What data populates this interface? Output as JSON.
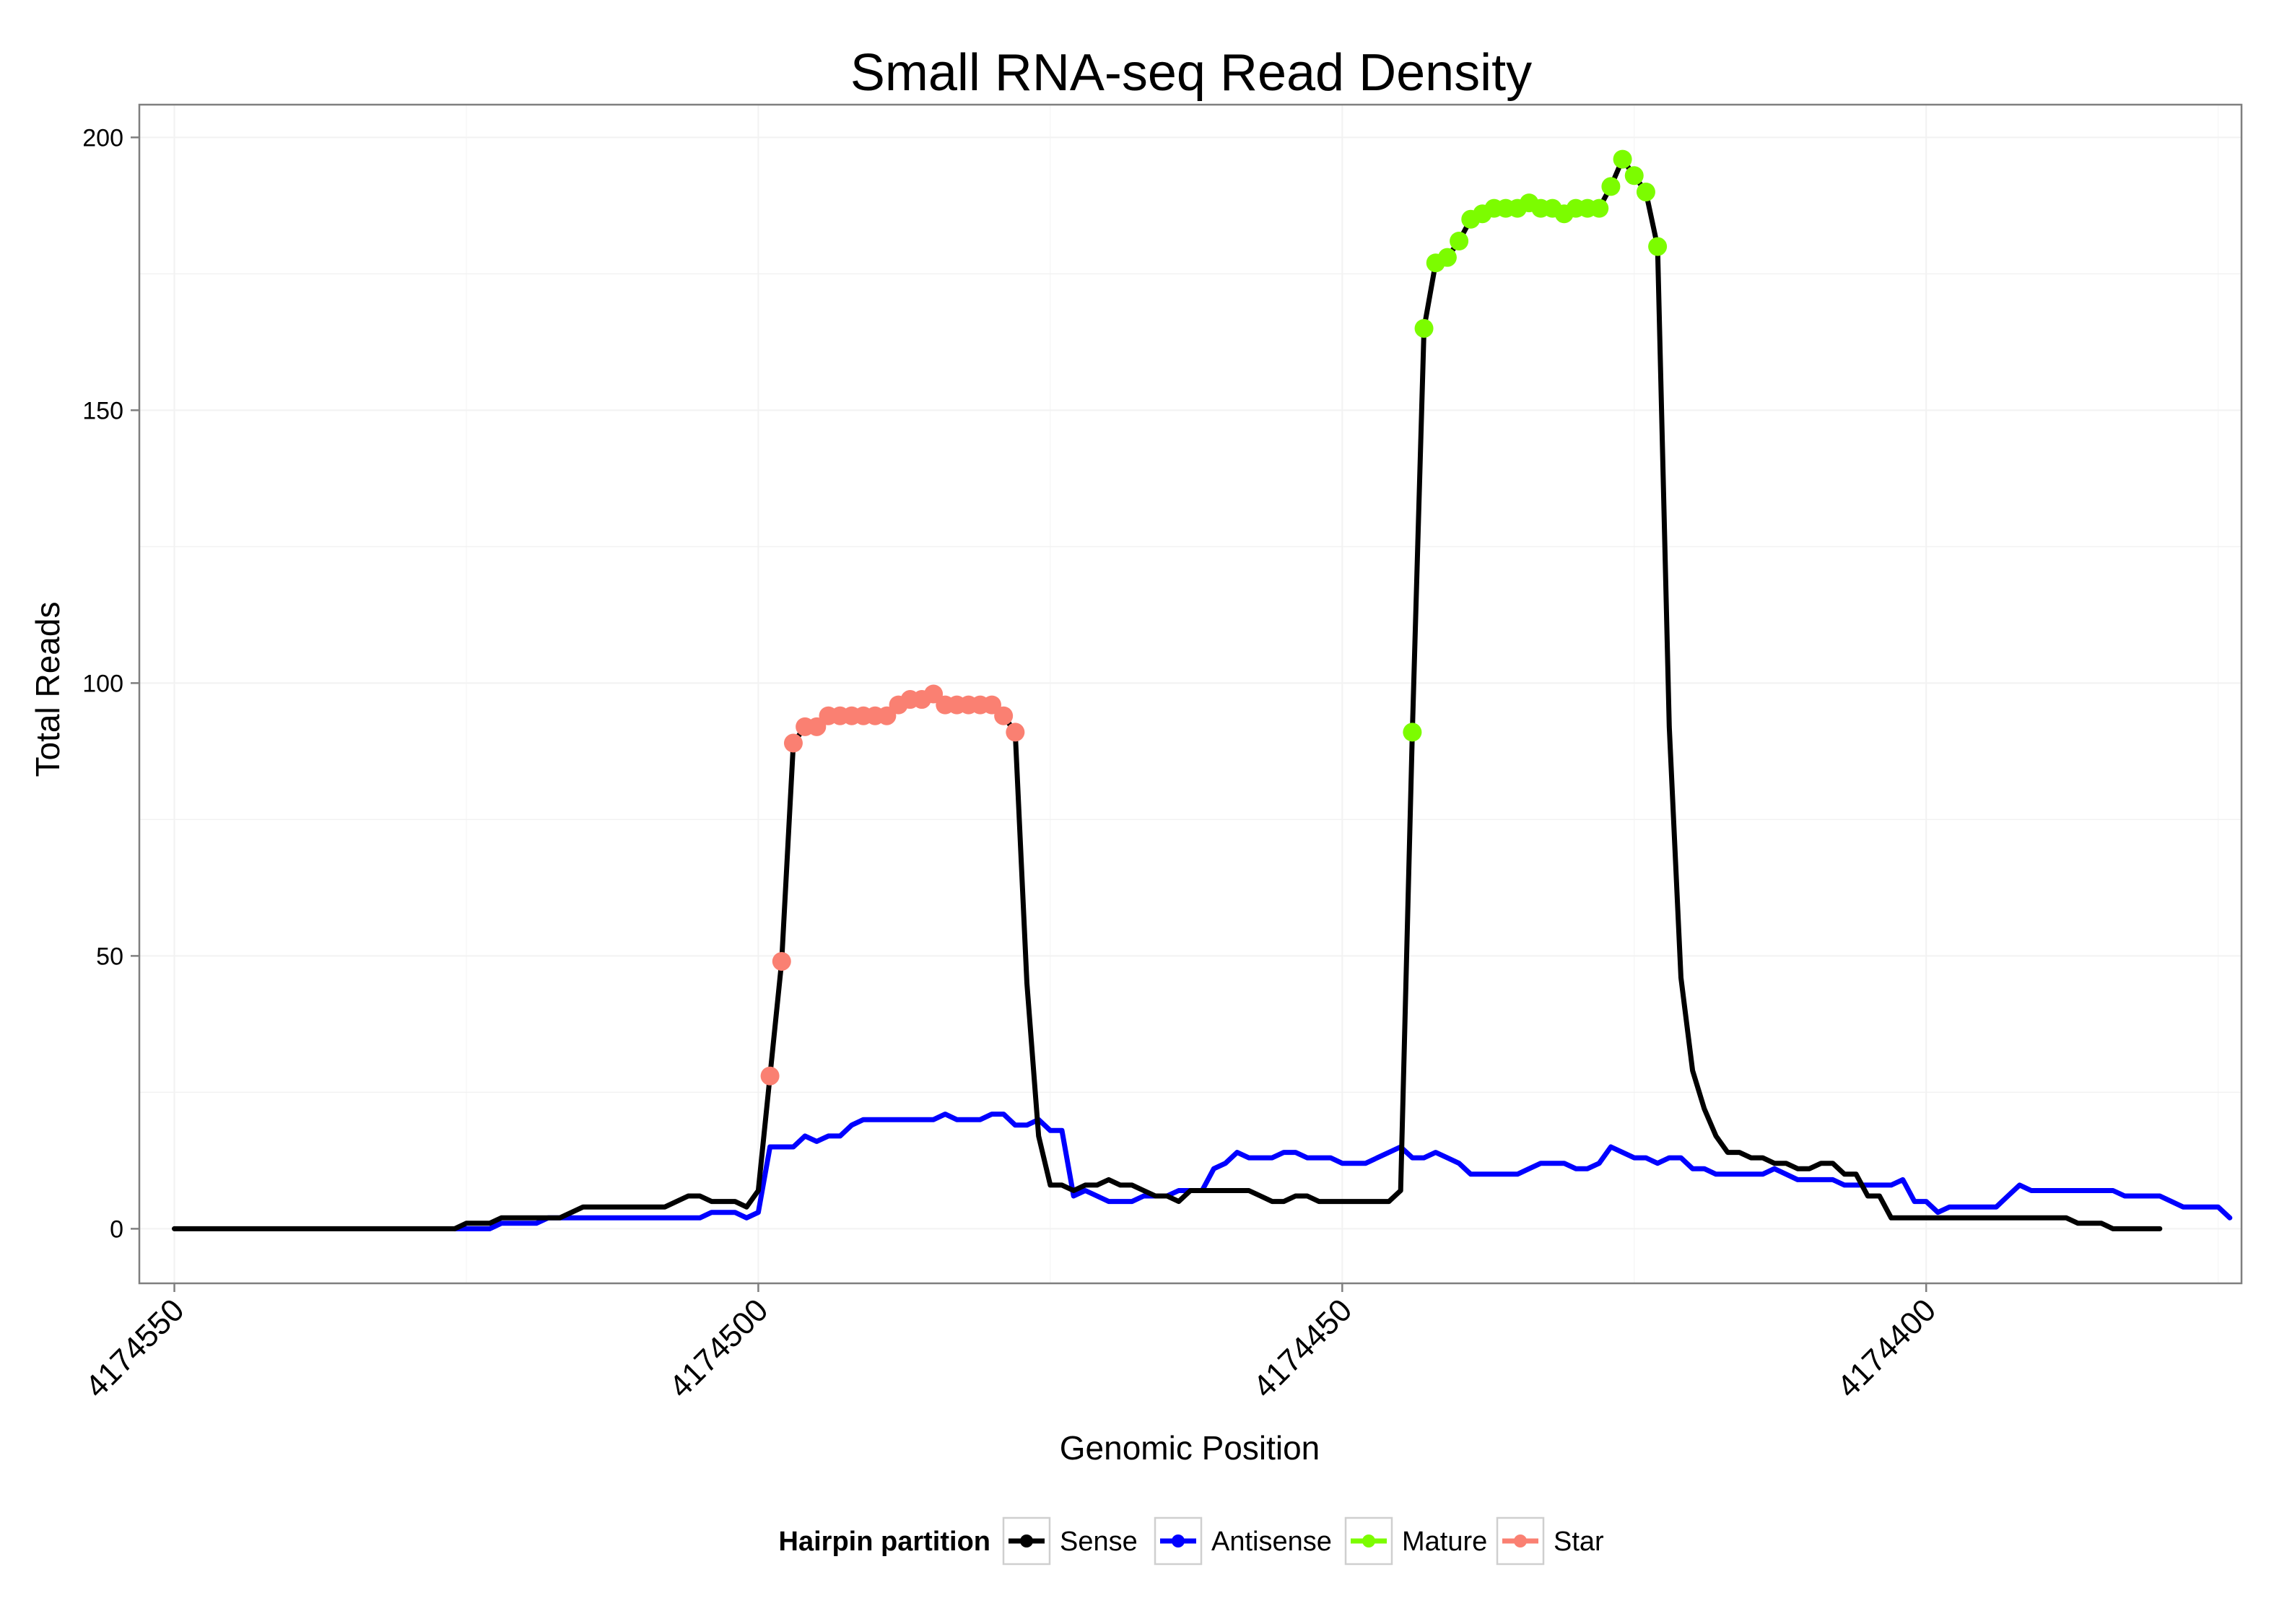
{
  "chart_data": {
    "type": "line",
    "title": "Small RNA-seq Read Density",
    "xlabel": "Genomic Position",
    "ylabel": "Total Reads",
    "x_reversed": true,
    "xlim": [
      4174553,
      4174373
    ],
    "ylim": [
      -10,
      206
    ],
    "x_ticks": [
      4174550,
      4174500,
      4174450,
      4174400
    ],
    "x_tick_labels": [
      "4174550",
      "4174500",
      "4174450",
      "4174400"
    ],
    "y_ticks": [
      0,
      50,
      100,
      150,
      200
    ],
    "y_tick_labels": [
      "0",
      "50",
      "100",
      "150",
      "200"
    ],
    "grid": true,
    "legend": {
      "title": "Hairpin partition",
      "position": "bottom",
      "entries": [
        {
          "label": "Sense",
          "color": "#000000"
        },
        {
          "label": "Antisense",
          "color": "#0000ff"
        },
        {
          "label": "Mature",
          "color": "#7cfc00"
        },
        {
          "label": "Star",
          "color": "#fa8072"
        }
      ]
    },
    "colors": {
      "sense": "#000000",
      "antisense": "#0000ff",
      "mature": "#7cfc00",
      "star": "#fa8072"
    },
    "series": [
      {
        "name": "Sense",
        "color": "#000000",
        "points": [
          [
            4174550,
            0
          ],
          [
            4174526,
            0
          ],
          [
            4174525,
            1
          ],
          [
            4174523,
            1
          ],
          [
            4174522,
            2
          ],
          [
            4174517,
            2
          ],
          [
            4174515,
            4
          ],
          [
            4174508,
            4
          ],
          [
            4174506,
            6
          ],
          [
            4174505,
            6
          ],
          [
            4174504,
            5
          ],
          [
            4174502,
            5
          ],
          [
            4174501,
            4
          ],
          [
            4174500,
            7
          ],
          [
            4174499,
            28
          ],
          [
            4174498,
            49
          ],
          [
            4174497,
            89
          ],
          [
            4174496,
            92
          ],
          [
            4174495,
            92
          ],
          [
            4174494,
            94
          ],
          [
            4174493,
            94
          ],
          [
            4174492,
            94
          ],
          [
            4174491,
            94
          ],
          [
            4174490,
            94
          ],
          [
            4174489,
            94
          ],
          [
            4174488,
            96
          ],
          [
            4174487,
            97
          ],
          [
            4174486,
            97
          ],
          [
            4174485,
            98
          ],
          [
            4174484,
            96
          ],
          [
            4174483,
            96
          ],
          [
            4174482,
            96
          ],
          [
            4174481,
            96
          ],
          [
            4174480,
            96
          ],
          [
            4174479,
            94
          ],
          [
            4174478,
            91
          ],
          [
            4174477,
            45
          ],
          [
            4174476,
            17
          ],
          [
            4174475,
            8
          ],
          [
            4174474,
            8
          ],
          [
            4174473,
            7
          ],
          [
            4174472,
            8
          ],
          [
            4174471,
            8
          ],
          [
            4174470,
            9
          ],
          [
            4174469,
            8
          ],
          [
            4174468,
            8
          ],
          [
            4174467,
            7
          ],
          [
            4174466,
            6
          ],
          [
            4174465,
            6
          ],
          [
            4174464,
            5
          ],
          [
            4174463,
            7
          ],
          [
            4174462,
            7
          ],
          [
            4174460,
            7
          ],
          [
            4174458,
            7
          ],
          [
            4174457,
            6
          ],
          [
            4174456,
            5
          ],
          [
            4174455,
            5
          ],
          [
            4174454,
            6
          ],
          [
            4174453,
            6
          ],
          [
            4174452,
            5
          ],
          [
            4174450,
            5
          ],
          [
            4174446,
            5
          ],
          [
            4174445,
            7
          ],
          [
            4174444,
            91
          ],
          [
            4174443,
            165
          ],
          [
            4174442,
            177
          ],
          [
            4174441,
            178
          ],
          [
            4174440,
            181
          ],
          [
            4174439,
            185
          ],
          [
            4174438,
            186
          ],
          [
            4174437,
            187
          ],
          [
            4174436,
            187
          ],
          [
            4174435,
            187
          ],
          [
            4174434,
            188
          ],
          [
            4174433,
            187
          ],
          [
            4174432,
            187
          ],
          [
            4174431,
            186
          ],
          [
            4174430,
            187
          ],
          [
            4174429,
            187
          ],
          [
            4174428,
            187
          ],
          [
            4174427,
            191
          ],
          [
            4174426,
            196
          ],
          [
            4174425,
            193
          ],
          [
            4174424,
            190
          ],
          [
            4174423,
            180
          ],
          [
            4174422,
            92
          ],
          [
            4174421,
            46
          ],
          [
            4174420,
            29
          ],
          [
            4174419,
            22
          ],
          [
            4174418,
            17
          ],
          [
            4174417,
            14
          ],
          [
            4174416,
            14
          ],
          [
            4174415,
            13
          ],
          [
            4174414,
            13
          ],
          [
            4174413,
            12
          ],
          [
            4174412,
            12
          ],
          [
            4174411,
            11
          ],
          [
            4174410,
            11
          ],
          [
            4174409,
            12
          ],
          [
            4174408,
            12
          ],
          [
            4174407,
            10
          ],
          [
            4174406,
            10
          ],
          [
            4174405,
            6
          ],
          [
            4174404,
            6
          ],
          [
            4174403,
            2
          ],
          [
            4174388,
            2
          ],
          [
            4174387,
            1
          ],
          [
            4174385,
            1
          ],
          [
            4174384,
            0
          ],
          [
            4174380,
            0
          ]
        ]
      },
      {
        "name": "Antisense",
        "color": "#0000ff",
        "points": [
          [
            4174526,
            0
          ],
          [
            4174523,
            0
          ],
          [
            4174522,
            1
          ],
          [
            4174519,
            1
          ],
          [
            4174518,
            2
          ],
          [
            4174505,
            2
          ],
          [
            4174504,
            3
          ],
          [
            4174502,
            3
          ],
          [
            4174501,
            2
          ],
          [
            4174500,
            3
          ],
          [
            4174499,
            15
          ],
          [
            4174497,
            15
          ],
          [
            4174496,
            17
          ],
          [
            4174495,
            16
          ],
          [
            4174494,
            17
          ],
          [
            4174493,
            17
          ],
          [
            4174492,
            19
          ],
          [
            4174491,
            20
          ],
          [
            4174487,
            20
          ],
          [
            4174486,
            20
          ],
          [
            4174485,
            20
          ],
          [
            4174484,
            21
          ],
          [
            4174483,
            20
          ],
          [
            4174481,
            20
          ],
          [
            4174480,
            21
          ],
          [
            4174479,
            21
          ],
          [
            4174478,
            19
          ],
          [
            4174477,
            19
          ],
          [
            4174476,
            20
          ],
          [
            4174475,
            18
          ],
          [
            4174474,
            18
          ],
          [
            4174473,
            6
          ],
          [
            4174472,
            7
          ],
          [
            4174471,
            6
          ],
          [
            4174470,
            5
          ],
          [
            4174468,
            5
          ],
          [
            4174467,
            6
          ],
          [
            4174465,
            6
          ],
          [
            4174464,
            7
          ],
          [
            4174462,
            7
          ],
          [
            4174461,
            11
          ],
          [
            4174460,
            12
          ],
          [
            4174459,
            14
          ],
          [
            4174458,
            13
          ],
          [
            4174456,
            13
          ],
          [
            4174455,
            14
          ],
          [
            4174454,
            14
          ],
          [
            4174453,
            13
          ],
          [
            4174451,
            13
          ],
          [
            4174450,
            12
          ],
          [
            4174448,
            12
          ],
          [
            4174447,
            13
          ],
          [
            4174446,
            14
          ],
          [
            4174445,
            15
          ],
          [
            4174444,
            13
          ],
          [
            4174443,
            13
          ],
          [
            4174442,
            14
          ],
          [
            4174441,
            13
          ],
          [
            4174440,
            12
          ],
          [
            4174439,
            10
          ],
          [
            4174435,
            10
          ],
          [
            4174434,
            11
          ],
          [
            4174433,
            12
          ],
          [
            4174431,
            12
          ],
          [
            4174430,
            11
          ],
          [
            4174429,
            11
          ],
          [
            4174428,
            12
          ],
          [
            4174427,
            15
          ],
          [
            4174426,
            14
          ],
          [
            4174425,
            13
          ],
          [
            4174424,
            13
          ],
          [
            4174423,
            12
          ],
          [
            4174422,
            13
          ],
          [
            4174421,
            13
          ],
          [
            4174420,
            11
          ],
          [
            4174419,
            11
          ],
          [
            4174418,
            10
          ],
          [
            4174414,
            10
          ],
          [
            4174413,
            11
          ],
          [
            4174412,
            10
          ],
          [
            4174411,
            9
          ],
          [
            4174408,
            9
          ],
          [
            4174407,
            8
          ],
          [
            4174403,
            8
          ],
          [
            4174402,
            9
          ],
          [
            4174401,
            5
          ],
          [
            4174400,
            5
          ],
          [
            4174399,
            3
          ],
          [
            4174398,
            4
          ],
          [
            4174394,
            4
          ],
          [
            4174393,
            6
          ],
          [
            4174392,
            8
          ],
          [
            4174391,
            7
          ],
          [
            4174386,
            7
          ],
          [
            4174384,
            7
          ],
          [
            4174383,
            6
          ],
          [
            4174380,
            6
          ],
          [
            4174379,
            5
          ],
          [
            4174378,
            4
          ],
          [
            4174375,
            4
          ],
          [
            4174374,
            2
          ]
        ]
      }
    ],
    "marker_series": [
      {
        "name": "Star",
        "color": "#fa8072",
        "points": [
          [
            4174499,
            28
          ],
          [
            4174498,
            49
          ],
          [
            4174497,
            89
          ],
          [
            4174496,
            92
          ],
          [
            4174495,
            92
          ],
          [
            4174494,
            94
          ],
          [
            4174493,
            94
          ],
          [
            4174492,
            94
          ],
          [
            4174491,
            94
          ],
          [
            4174490,
            94
          ],
          [
            4174489,
            94
          ],
          [
            4174488,
            96
          ],
          [
            4174487,
            97
          ],
          [
            4174486,
            97
          ],
          [
            4174485,
            98
          ],
          [
            4174484,
            96
          ],
          [
            4174483,
            96
          ],
          [
            4174482,
            96
          ],
          [
            4174481,
            96
          ],
          [
            4174480,
            96
          ],
          [
            4174479,
            94
          ],
          [
            4174478,
            91
          ]
        ]
      },
      {
        "name": "Mature",
        "color": "#7cfc00",
        "points": [
          [
            4174444,
            91
          ],
          [
            4174443,
            165
          ],
          [
            4174442,
            177
          ],
          [
            4174441,
            178
          ],
          [
            4174440,
            181
          ],
          [
            4174439,
            185
          ],
          [
            4174438,
            186
          ],
          [
            4174437,
            187
          ],
          [
            4174436,
            187
          ],
          [
            4174435,
            187
          ],
          [
            4174434,
            188
          ],
          [
            4174433,
            187
          ],
          [
            4174432,
            187
          ],
          [
            4174431,
            186
          ],
          [
            4174430,
            187
          ],
          [
            4174429,
            187
          ],
          [
            4174428,
            187
          ],
          [
            4174427,
            191
          ],
          [
            4174426,
            196
          ],
          [
            4174425,
            193
          ],
          [
            4174424,
            190
          ],
          [
            4174423,
            180
          ]
        ]
      }
    ]
  }
}
